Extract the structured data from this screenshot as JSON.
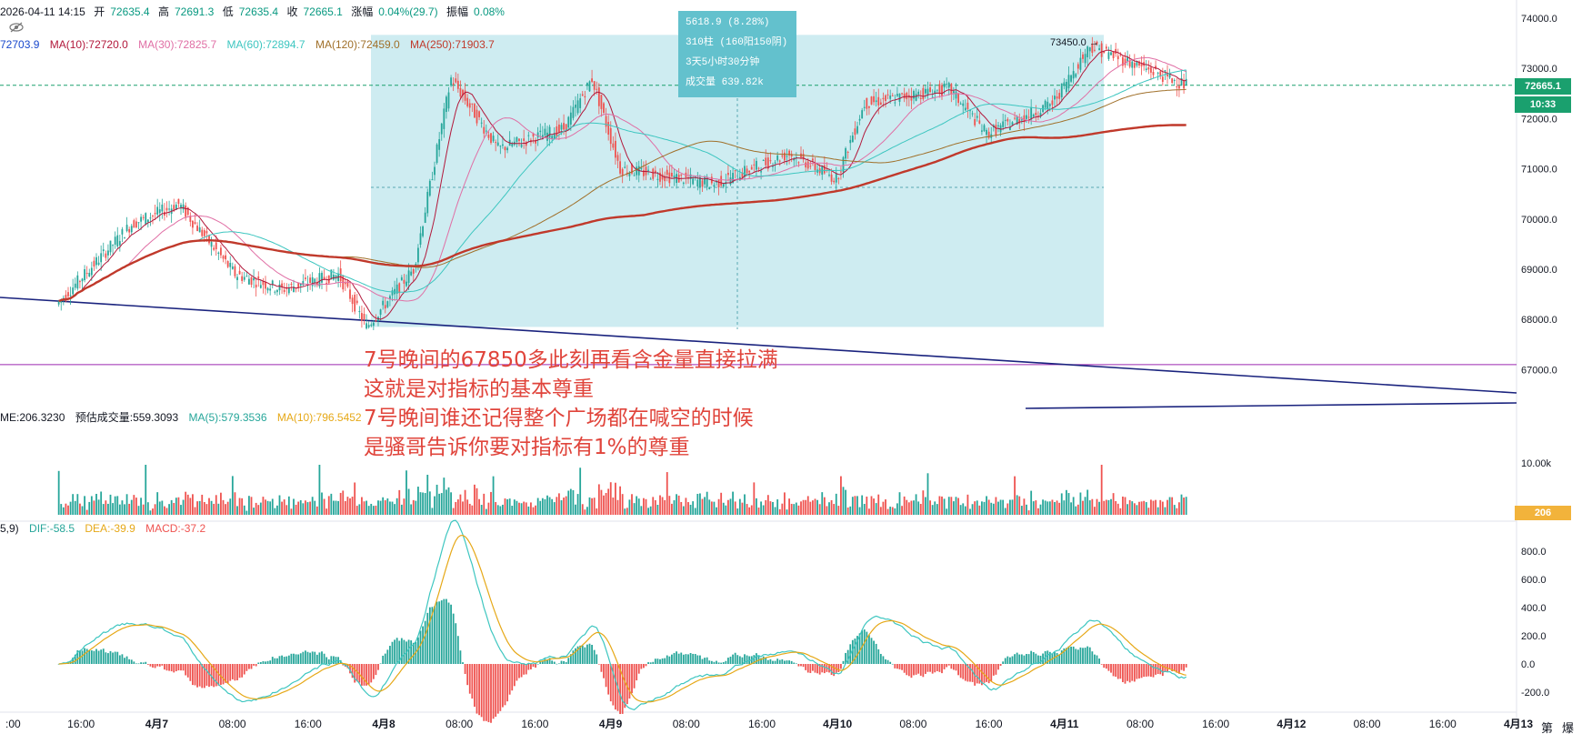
{
  "ohlc": {
    "datetime": "2026-04-11 14:15",
    "open_label": "开",
    "open": "72635.4",
    "high_label": "高",
    "high": "72691.3",
    "low_label": "低",
    "low": "72635.4",
    "close_label": "收",
    "close": "72665.1",
    "change_label": "涨幅",
    "change": "0.04%(29.7)",
    "amp_label": "振幅",
    "amp": "0.08%"
  },
  "ma_legend": [
    {
      "text": "72703.9",
      "color": "#1848cc"
    },
    {
      "text": "MA(10):72720.0",
      "color": "#b2183b"
    },
    {
      "text": "MA(30):72825.7",
      "color": "#e06fa5"
    },
    {
      "text": "MA(60):72894.7",
      "color": "#3dc6c0"
    },
    {
      "text": "MA(120):72459.0",
      "color": "#a0702a"
    },
    {
      "text": "MA(250):71903.7",
      "color": "#c0392b"
    }
  ],
  "volume_legend": [
    {
      "text": "ME:206.3230",
      "color": "#131722"
    },
    {
      "text": "预估成交量:559.3093",
      "color": "#131722"
    },
    {
      "text": "MA(5):579.3536",
      "color": "#26a69a"
    },
    {
      "text": "MA(10):796.5452",
      "color": "#e6a817"
    }
  ],
  "macd_legend": [
    {
      "text": "5,9)",
      "color": "#131722"
    },
    {
      "text": "DIF:-58.5",
      "color": "#26a69a"
    },
    {
      "text": "DEA:-39.9",
      "color": "#e6a817"
    },
    {
      "text": "MACD:-37.2",
      "color": "#ef5350"
    }
  ],
  "measure": {
    "line1": "5618.9 (8.28%)",
    "line2": "310柱 (160阳150阴)",
    "line3": "3天5小时30分钟",
    "line4": "成交量 639.82k"
  },
  "high_marker": "73450.0 →",
  "annotation": [
    "7号晚间的67850多此刻再看含金量直接拉满",
    "这就是对指标的基本尊重",
    "7号晚间谁还记得整个广场都在喊空的时候",
    "是骚哥告诉你要对指标有1%的尊重"
  ],
  "price_axis": {
    "ticks": [
      "74000.0",
      "73000.0",
      "72000.0",
      "71000.0",
      "70000.0",
      "69000.0",
      "68000.0",
      "67000.0"
    ],
    "current_price": "72665.1",
    "countdown": "10:33",
    "current_color": "#1aa06e"
  },
  "volume_axis": {
    "ticks": [
      "10.00k"
    ],
    "current": "206",
    "current_color": "#f2b33b"
  },
  "macd_axis": {
    "ticks": [
      "800.0",
      "600.0",
      "400.0",
      "200.0",
      "0.0",
      "-200.0"
    ]
  },
  "time_axis": [
    {
      "label": ":00",
      "bold": false
    },
    {
      "label": "16:00",
      "bold": false
    },
    {
      "label": "4月7",
      "bold": true
    },
    {
      "label": "08:00",
      "bold": false
    },
    {
      "label": "16:00",
      "bold": false
    },
    {
      "label": "4月8",
      "bold": true
    },
    {
      "label": "08:00",
      "bold": false
    },
    {
      "label": "16:00",
      "bold": false
    },
    {
      "label": "4月9",
      "bold": true
    },
    {
      "label": "08:00",
      "bold": false
    },
    {
      "label": "16:00",
      "bold": false
    },
    {
      "label": "4月10",
      "bold": true
    },
    {
      "label": "08:00",
      "bold": false
    },
    {
      "label": "16:00",
      "bold": false
    },
    {
      "label": "4月11",
      "bold": true
    },
    {
      "label": "08:00",
      "bold": false
    },
    {
      "label": "16:00",
      "bold": false
    },
    {
      "label": "4月12",
      "bold": true
    },
    {
      "label": "08:00",
      "bold": false
    },
    {
      "label": "16:00",
      "bold": false
    },
    {
      "label": "4月13",
      "bold": true
    }
  ],
  "corner_buttons": [
    "第",
    "爆"
  ],
  "colors": {
    "up": "#26a69a",
    "down": "#ef5350",
    "measure_fill": "#c6e9ee",
    "trendline": "#1a237e",
    "horizontal_line": "#9c27b0"
  },
  "chart_data": {
    "type": "candlestick",
    "timeframe": "15m",
    "price_range": [
      66600,
      74100
    ],
    "swing_points": [
      {
        "time": "4月6 14:00",
        "price": 68300
      },
      {
        "time": "4月6 22:00",
        "price": 69900
      },
      {
        "time": "4月7 03:00",
        "price": 70300
      },
      {
        "time": "4月7 09:00",
        "price": 68900
      },
      {
        "time": "4月7 14:00",
        "price": 68600
      },
      {
        "time": "4月7 20:00",
        "price": 68900
      },
      {
        "time": "4月7 23:00",
        "price": 67850
      },
      {
        "time": "4月8 04:00",
        "price": 69000
      },
      {
        "time": "4月8 08:00",
        "price": 72800
      },
      {
        "time": "4月8 13:00",
        "price": 71400
      },
      {
        "time": "4月8 20:00",
        "price": 71800
      },
      {
        "time": "4月8 23:00",
        "price": 72800
      },
      {
        "time": "4月9 02:00",
        "price": 71000
      },
      {
        "time": "4月9 12:00",
        "price": 70700
      },
      {
        "time": "4月9 20:00",
        "price": 71300
      },
      {
        "time": "4月10 01:00",
        "price": 70800
      },
      {
        "time": "4月10 04:00",
        "price": 72300
      },
      {
        "time": "4월10 13:00",
        "price": 72600
      },
      {
        "time": "4月10 17:00",
        "price": 71700
      },
      {
        "time": "4月11 00:00",
        "price": 72300
      },
      {
        "time": "4月11 04:00",
        "price": 73450
      },
      {
        "time": "4月11 14:15",
        "price": 72665
      }
    ],
    "measure_low": 67850,
    "measure_high": 73450,
    "horizontal_level": 67100
  }
}
